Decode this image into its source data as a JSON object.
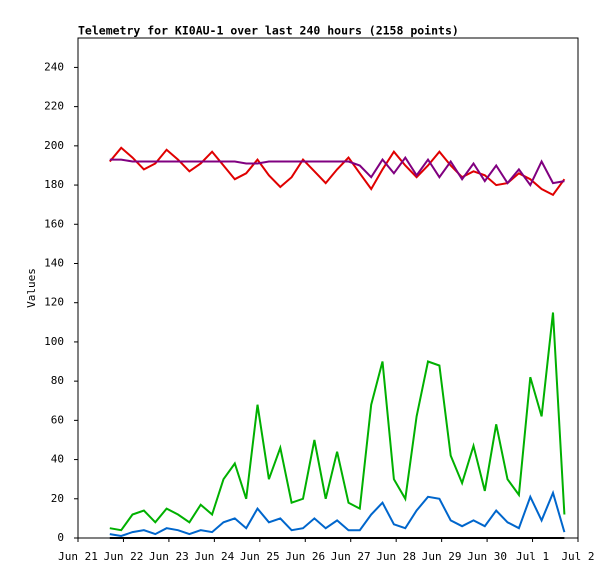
{
  "chart_data": {
    "type": "line",
    "title": "Telemetry for KI0AU-1 over last 240 hours (2158 points)",
    "y_label": "Values",
    "xlim": [
      0,
      11
    ],
    "xticks": [
      {
        "value": 0,
        "label": "Jun 21"
      },
      {
        "value": 1,
        "label": "Jun 22"
      },
      {
        "value": 2,
        "label": "Jun 23"
      },
      {
        "value": 3,
        "label": "Jun 24"
      },
      {
        "value": 4,
        "label": "Jun 25"
      },
      {
        "value": 5,
        "label": "Jun 26"
      },
      {
        "value": 6,
        "label": "Jun 27"
      },
      {
        "value": 7,
        "label": "Jun 28"
      },
      {
        "value": 8,
        "label": "Jun 29"
      },
      {
        "value": 9,
        "label": "Jun 30"
      },
      {
        "value": 10,
        "label": "Jul 1"
      },
      {
        "value": 11,
        "label": "Jul 2"
      }
    ],
    "ylim": [
      0,
      255
    ],
    "yticks": [
      0,
      20,
      40,
      60,
      80,
      100,
      120,
      140,
      160,
      180,
      200,
      220,
      240
    ],
    "x": [
      0.7,
      0.95,
      1.2,
      1.45,
      1.7,
      1.95,
      2.2,
      2.45,
      2.7,
      2.95,
      3.2,
      3.45,
      3.7,
      3.95,
      4.2,
      4.45,
      4.7,
      4.95,
      5.2,
      5.45,
      5.7,
      5.95,
      6.2,
      6.45,
      6.7,
      6.95,
      7.2,
      7.45,
      7.7,
      7.95,
      8.2,
      8.45,
      8.7,
      8.95,
      9.2,
      9.45,
      9.7,
      9.95,
      10.2,
      10.45,
      10.7
    ],
    "series": [
      {
        "color": "#000000",
        "values": [
          0,
          0,
          0,
          0,
          0,
          0,
          0,
          0,
          0,
          0,
          0,
          0,
          0,
          0,
          0,
          0,
          0,
          0,
          0,
          0,
          0,
          0,
          0,
          0,
          0,
          0,
          0,
          0,
          0,
          0,
          0,
          0,
          0,
          0,
          0,
          0,
          0,
          0,
          0,
          0,
          0
        ]
      },
      {
        "color": "#0066cc",
        "values": [
          2,
          1,
          3,
          4,
          2,
          5,
          4,
          2,
          4,
          3,
          8,
          10,
          5,
          15,
          8,
          10,
          4,
          5,
          10,
          5,
          9,
          4,
          4,
          12,
          18,
          7,
          5,
          14,
          21,
          20,
          9,
          6,
          9,
          6,
          14,
          8,
          5,
          21,
          9,
          23,
          3
        ]
      },
      {
        "color": "#00b000",
        "values": [
          5,
          4,
          12,
          14,
          8,
          15,
          12,
          8,
          17,
          12,
          30,
          38,
          20,
          68,
          30,
          46,
          18,
          20,
          50,
          20,
          44,
          18,
          15,
          68,
          90,
          30,
          20,
          62,
          90,
          88,
          42,
          28,
          47,
          24,
          58,
          30,
          22,
          82,
          62,
          115,
          12
        ]
      },
      {
        "color": "#e00000",
        "values": [
          192,
          199,
          194,
          188,
          191,
          198,
          193,
          187,
          191,
          197,
          190,
          183,
          186,
          193,
          185,
          179,
          184,
          193,
          187,
          181,
          188,
          194,
          186,
          178,
          188,
          197,
          190,
          184,
          190,
          197,
          190,
          184,
          187,
          185,
          180,
          181,
          186,
          183,
          178,
          175,
          183
        ]
      },
      {
        "color": "#800080",
        "values": [
          193,
          193,
          192,
          192,
          192,
          192,
          192,
          192,
          192,
          192,
          192,
          192,
          191,
          191,
          192,
          192,
          192,
          192,
          192,
          192,
          192,
          192,
          190,
          184,
          193,
          186,
          194,
          185,
          193,
          184,
          192,
          183,
          191,
          182,
          190,
          181,
          188,
          180,
          192,
          181,
          182
        ]
      }
    ]
  }
}
